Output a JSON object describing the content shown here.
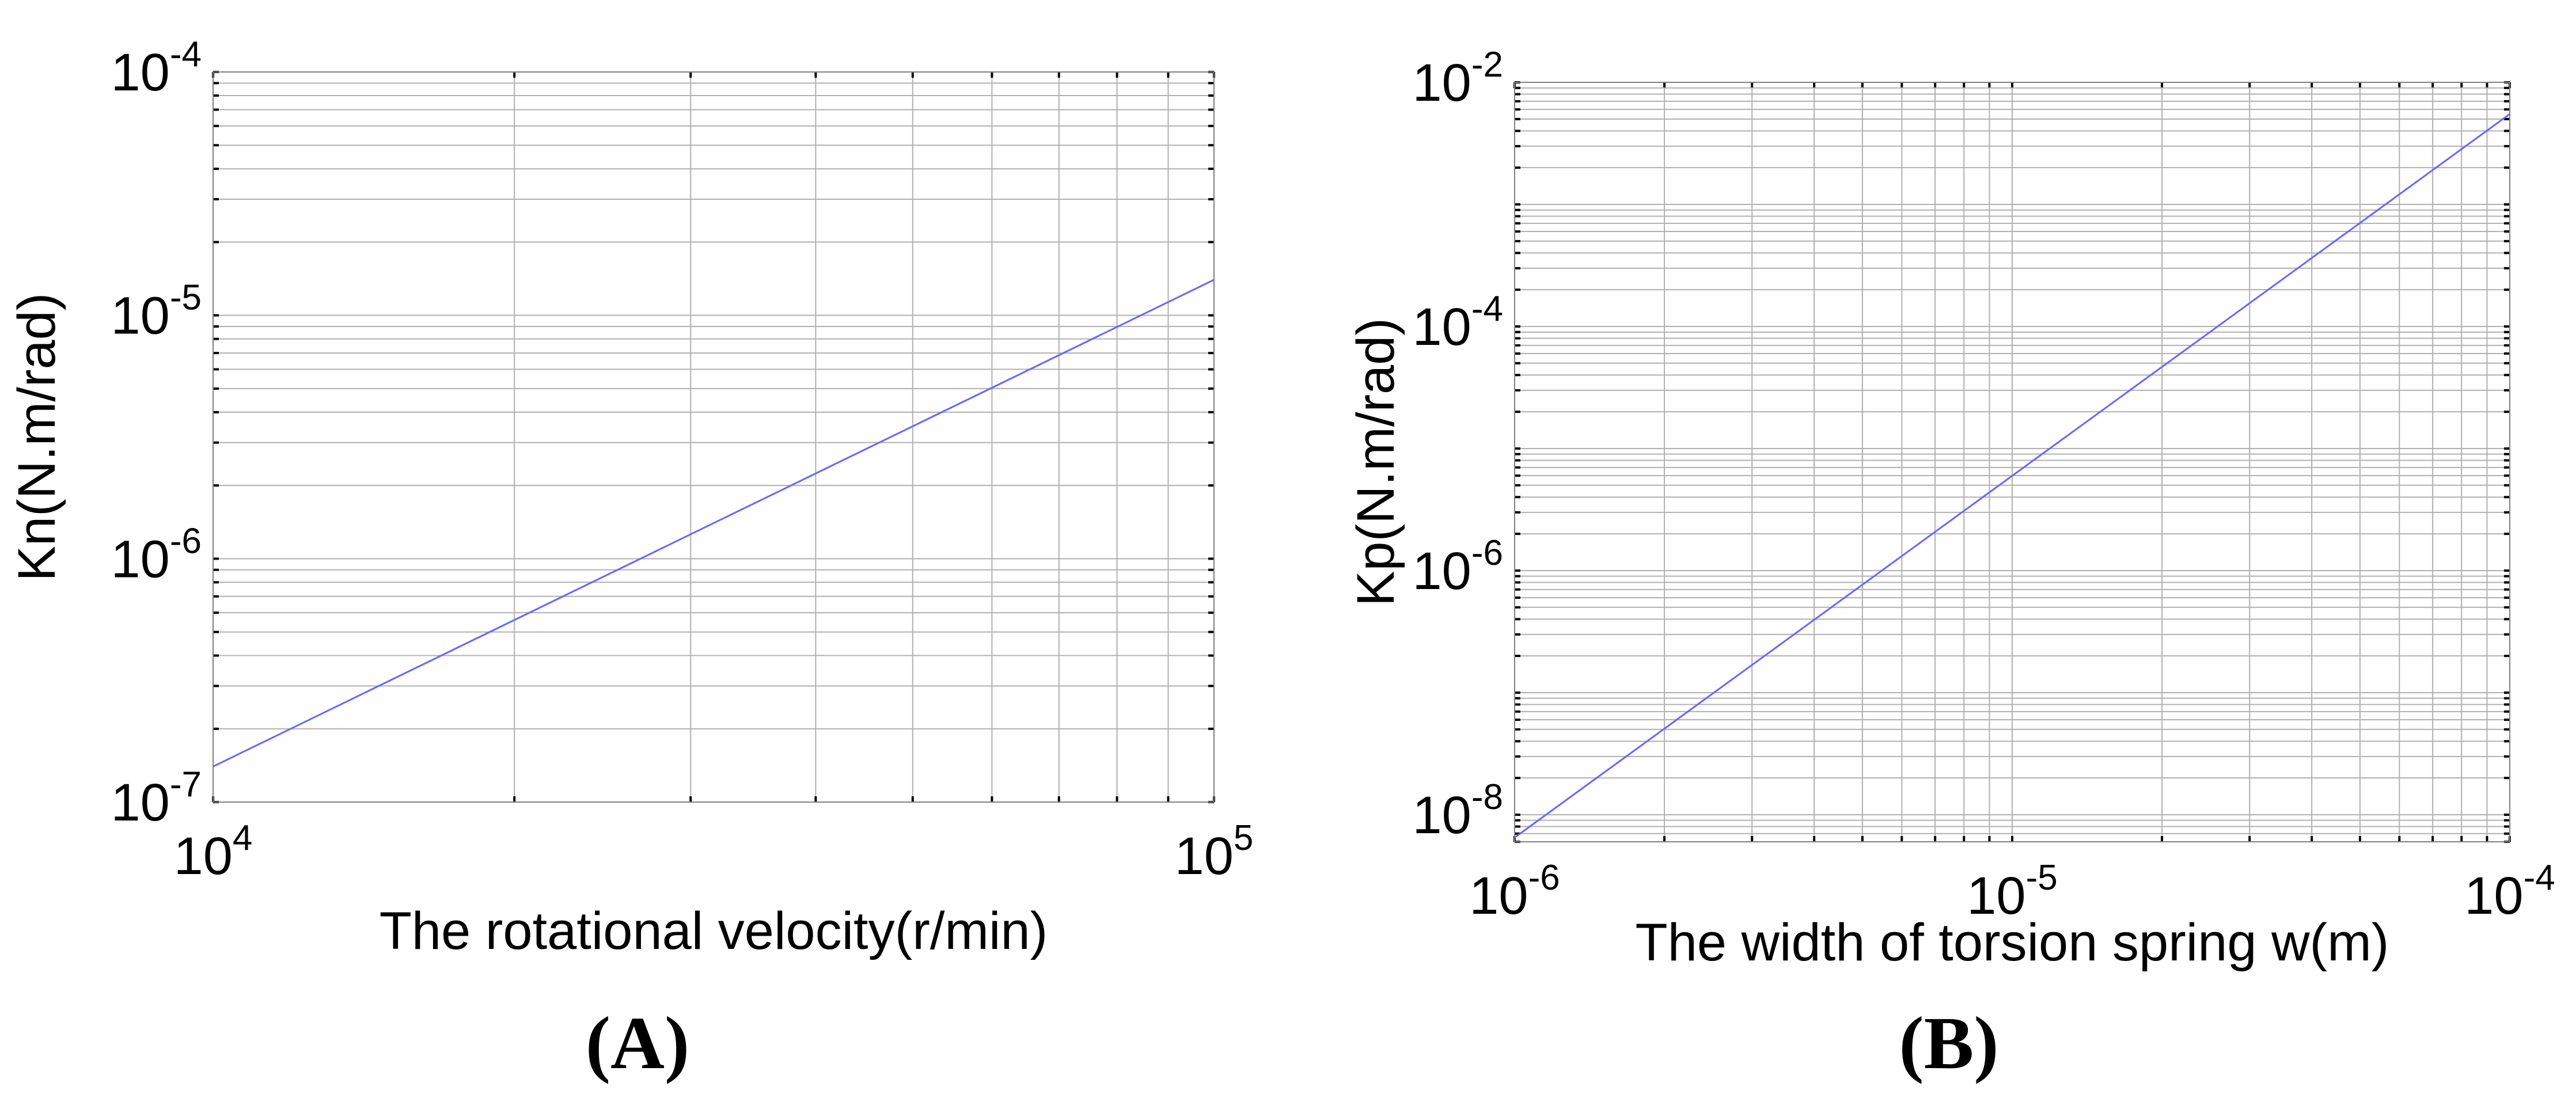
{
  "chart_data": [
    {
      "panel_label": "(A)",
      "type": "line",
      "xscale": "log",
      "yscale": "log",
      "xlim": [
        10000,
        100000
      ],
      "ylim": [
        1e-07,
        0.0001
      ],
      "grid": true,
      "xlabel": "The rotational velocity(r/min)",
      "ylabel": "Kn(N.m/rad)",
      "x_ticks": [
        {
          "value": 10000,
          "base": "10",
          "exp": "4"
        },
        {
          "value": 100000,
          "base": "10",
          "exp": "5"
        }
      ],
      "y_ticks": [
        {
          "value": 1e-07,
          "base": "10",
          "exp": "-7"
        },
        {
          "value": 1e-06,
          "base": "10",
          "exp": "-6"
        },
        {
          "value": 1e-05,
          "base": "10",
          "exp": "-5"
        },
        {
          "value": 0.0001,
          "base": "10",
          "exp": "-4"
        }
      ],
      "series": [
        {
          "color": "#6666ff",
          "x": [
            10000,
            100000
          ],
          "y": [
            1.4e-07,
            1.4e-05
          ]
        }
      ]
    },
    {
      "panel_label": "(B)",
      "type": "line",
      "xscale": "log",
      "yscale": "log",
      "xlim": [
        1e-06,
        0.0001
      ],
      "ylim": [
        6e-09,
        0.01
      ],
      "grid": true,
      "xlabel": "The width of torsion spring w(m)",
      "ylabel": "Kp(N.m/rad)",
      "x_ticks": [
        {
          "value": 1e-06,
          "base": "10",
          "exp": "-6"
        },
        {
          "value": 1e-05,
          "base": "10",
          "exp": "-5"
        },
        {
          "value": 0.0001,
          "base": "10",
          "exp": "-4"
        }
      ],
      "y_ticks": [
        {
          "value": 1e-08,
          "base": "10",
          "exp": "-8"
        },
        {
          "value": 1e-06,
          "base": "10",
          "exp": "-6"
        },
        {
          "value": 0.0001,
          "base": "10",
          "exp": "-4"
        },
        {
          "value": 0.01,
          "base": "10",
          "exp": "-2"
        }
      ],
      "series": [
        {
          "color": "#6666ff",
          "x": [
            1e-06,
            0.0001
          ],
          "y": [
            6.5e-09,
            0.0055
          ]
        }
      ]
    }
  ]
}
